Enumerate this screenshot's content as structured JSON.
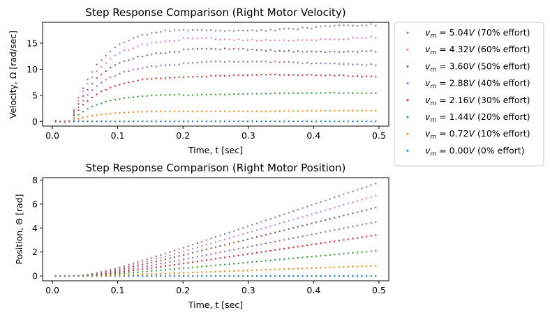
{
  "chart_data": [
    {
      "type": "scatter",
      "title": "Step Response Comparison (Right Motor Velocity)",
      "xlabel": "Time, t [sec]",
      "ylabel": "Velocity, Ω [rad/sec]",
      "xlim": [
        -0.015,
        0.515
      ],
      "ylim": [
        -0.9,
        19.0
      ],
      "xticks": [
        0.0,
        0.1,
        0.2,
        0.3,
        0.4,
        0.5
      ],
      "xtick_labels": [
        "0.0",
        "0.1",
        "0.2",
        "0.3",
        "0.4",
        "0.5"
      ],
      "yticks": [
        0,
        5,
        10,
        15
      ],
      "ytick_labels": [
        "0",
        "5",
        "10",
        "15"
      ],
      "response": "velocity",
      "rise_time_constant_s": 0.045,
      "start_time_s": 0.027
    },
    {
      "type": "scatter",
      "title": "Step Response Comparison (Right Motor Position)",
      "xlabel": "Time, t [sec]",
      "ylabel": "Position, Θ [rad]",
      "xlim": [
        -0.015,
        0.515
      ],
      "ylim": [
        -0.4,
        8.2
      ],
      "xticks": [
        0.0,
        0.1,
        0.2,
        0.3,
        0.4,
        0.5
      ],
      "xtick_labels": [
        "0.0",
        "0.1",
        "0.2",
        "0.3",
        "0.4",
        "0.5"
      ],
      "yticks": [
        0,
        2,
        4,
        6,
        8
      ],
      "ytick_labels": [
        "0",
        "2",
        "4",
        "6",
        "8"
      ],
      "response": "position",
      "rise_time_constant_s": 0.045,
      "start_time_s": 0.027
    }
  ],
  "series": [
    {
      "math": "v",
      "sub": "m",
      "rest": " = 5.04",
      "unit": "V",
      "effort": " (70% effort)",
      "color": "#7f7f7f",
      "final_velocity": 18.0,
      "final_position": 7.7
    },
    {
      "math": "v",
      "sub": "m",
      "rest": " = 4.32",
      "unit": "V",
      "effort": " (60% effort)",
      "color": "#e377c2",
      "final_velocity": 16.0,
      "final_position": 6.7
    },
    {
      "math": "v",
      "sub": "m",
      "rest": " = 3.60",
      "unit": "V",
      "effort": " (50% effort)",
      "color": "#8c564b",
      "final_velocity": 13.7,
      "final_position": 5.7
    },
    {
      "math": "v",
      "sub": "m",
      "rest": " = 2.88",
      "unit": "V",
      "effort": " (40% effort)",
      "color": "#9467bd",
      "final_velocity": 11.2,
      "final_position": 4.5
    },
    {
      "math": "v",
      "sub": "m",
      "rest": " = 2.16",
      "unit": "V",
      "effort": " (30% effort)",
      "color": "#d62728",
      "final_velocity": 8.7,
      "final_position": 3.4
    },
    {
      "math": "v",
      "sub": "m",
      "rest": " = 1.44",
      "unit": "V",
      "effort": " (20% effort)",
      "color": "#2ca02c",
      "final_velocity": 5.3,
      "final_position": 2.1
    },
    {
      "math": "v",
      "sub": "m",
      "rest": " = 0.72",
      "unit": "V",
      "effort": " (10% effort)",
      "color": "#ff7f0e",
      "final_velocity": 2.0,
      "final_position": 0.85
    },
    {
      "math": "v",
      "sub": "m",
      "rest": " = 0.00",
      "unit": "V",
      "effort": " (0% effort)",
      "color": "#1f77b4",
      "final_velocity": 0.0,
      "final_position": 0.0
    }
  ],
  "sampling": {
    "t_start_s": 0.005,
    "t_end_s": 0.495,
    "step_s": 0.007
  }
}
